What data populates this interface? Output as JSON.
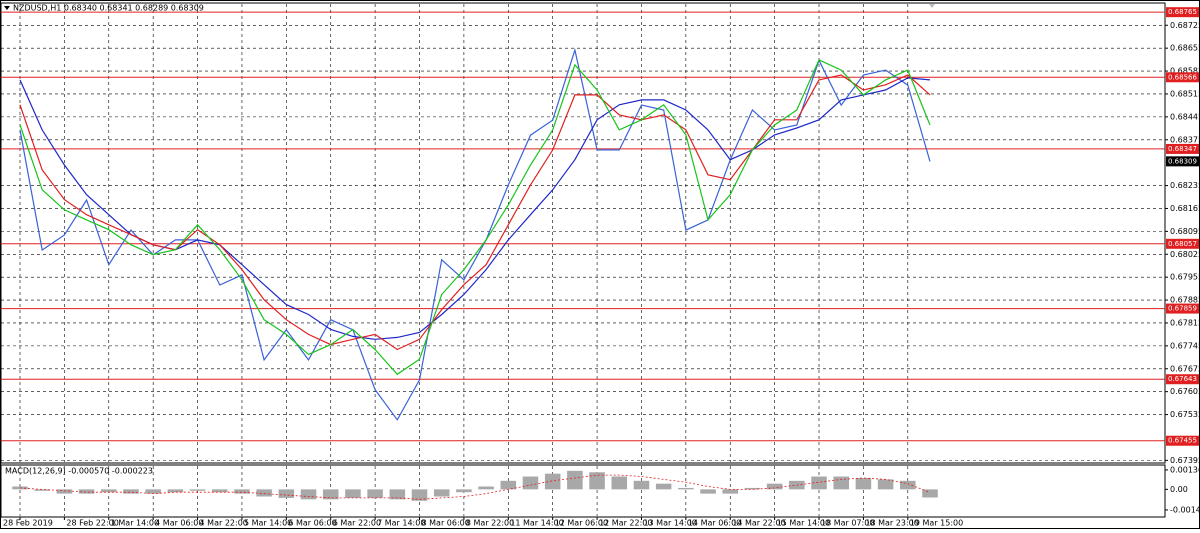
{
  "chart_data": [
    {
      "type": "line",
      "title": "NZDUSD,H1 0.68340 0.68341 0.68289 0.68309",
      "categories": [
        "28 Feb 2019",
        null,
        "28 Feb 22:00",
        null,
        "1 Mar 14:00",
        null,
        "4 Mar 06:00",
        null,
        "4 Mar 22:00",
        null,
        "5 Mar 14:00",
        null,
        "6 Mar 06:00",
        null,
        "6 Mar 22:00",
        null,
        "7 Mar 14:00",
        null,
        "8 Mar 06:00",
        null,
        "8 Mar 22:00",
        null,
        "11 Mar 14:00",
        null,
        "12 Mar 06:00",
        null,
        "12 Mar 22:00",
        null,
        "13 Mar 14:00",
        null,
        "14 Mar 06:00",
        null,
        "14 Mar 22:00",
        null,
        "15 Mar 14:00",
        null,
        "18 Mar 07:00",
        null,
        "18 Mar 23:00",
        null,
        "19 Mar 15:00",
        null
      ],
      "series": [
        {
          "color": "#3a62d8",
          "values": [
            0.68405,
            0.68038,
            0.68084,
            0.68191,
            0.67993,
            0.68099,
            0.68023,
            0.68069,
            0.68069,
            0.67931,
            0.67962,
            0.67702,
            0.67794,
            0.67702,
            0.67825,
            0.67794,
            0.67611,
            0.67519,
            0.67641,
            0.68008,
            0.67947,
            0.68069,
            0.68237,
            0.68389,
            0.68435,
            0.68649,
            0.68344,
            0.68344,
            0.68481,
            0.68466,
            0.68099,
            0.6813,
            0.68313,
            0.68466,
            0.68405,
            0.6842,
            0.68618,
            0.68481,
            0.68573,
            0.68588,
            0.68542,
            0.68309
          ]
        },
        {
          "color": "#1e28c8",
          "values": [
            0.68558,
            0.68405,
            0.68298,
            0.68207,
            0.68146,
            0.68085,
            0.68054,
            0.68039,
            0.68069,
            0.68054,
            0.67993,
            0.67932,
            0.67871,
            0.67841,
            0.67795,
            0.67774,
            0.67765,
            0.67771,
            0.67786,
            0.67841,
            0.67902,
            0.67978,
            0.68069,
            0.68146,
            0.68222,
            0.68314,
            0.68436,
            0.68482,
            0.68497,
            0.68497,
            0.68466,
            0.68405,
            0.68314,
            0.68344,
            0.6839,
            0.68411,
            0.68436,
            0.68497,
            0.68512,
            0.68527,
            0.68564,
            0.68558
          ]
        },
        {
          "color": "#e02020",
          "values": [
            0.68482,
            0.68283,
            0.68192,
            0.68146,
            0.68115,
            0.68085,
            0.68054,
            0.68039,
            0.681,
            0.68054,
            0.67978,
            0.67886,
            0.67825,
            0.6778,
            0.67749,
            0.67765,
            0.6778,
            0.67734,
            0.67765,
            0.67856,
            0.67932,
            0.67993,
            0.68115,
            0.68237,
            0.68344,
            0.68512,
            0.68512,
            0.68451,
            0.68436,
            0.68451,
            0.68405,
            0.68268,
            0.68253,
            0.68344,
            0.68436,
            0.68436,
            0.68558,
            0.68573,
            0.68527,
            0.68543,
            0.68573,
            0.68512
          ]
        },
        {
          "color": "#18c418",
          "values": [
            0.6842,
            0.68222,
            0.68161,
            0.6813,
            0.681,
            0.68054,
            0.68024,
            0.68039,
            0.68115,
            0.68039,
            0.67947,
            0.67825,
            0.6778,
            0.67719,
            0.67749,
            0.67795,
            0.67734,
            0.67658,
            0.67704,
            0.67902,
            0.67978,
            0.68069,
            0.68176,
            0.68298,
            0.68405,
            0.68604,
            0.68527,
            0.68405,
            0.68436,
            0.68482,
            0.6839,
            0.6813,
            0.68207,
            0.68344,
            0.6842,
            0.68466,
            0.68619,
            0.68588,
            0.68512,
            0.68558,
            0.68588,
            0.6842
          ]
        }
      ],
      "levels": [
        0.68765,
        0.68566,
        0.68347,
        0.68057,
        0.67859,
        0.67643,
        0.67455
      ],
      "level_color": "#e02020",
      "current_price": 0.68309,
      "ylim": [
        0.6739,
        0.6879
      ],
      "yticks": [
        0.68725,
        0.68655,
        0.68585,
        0.68515,
        0.68445,
        0.68375,
        0.68235,
        0.68165,
        0.68095,
        0.68025,
        0.67955,
        0.67885,
        0.67815,
        0.67745,
        0.67675,
        0.67605,
        0.67535,
        0.67395
      ],
      "grid": true
    },
    {
      "type": "bar",
      "title": "MACD(12,26,9) -0.000570 -0.000223",
      "series": [
        {
          "type": "bar",
          "color": "#a8a8a8",
          "values": [
            0.0002,
            -0.0001,
            -0.0003,
            -0.0003,
            -0.0002,
            -0.0003,
            -0.0003,
            -0.0002,
            -0.0001,
            -0.0002,
            -0.0003,
            -0.0005,
            -0.0006,
            -0.0007,
            -0.0007,
            -0.0006,
            -0.0006,
            -0.0007,
            -0.0008,
            -0.0005,
            -0.0002,
            0.0002,
            0.0006,
            0.0009,
            0.0011,
            0.0013,
            0.0012,
            0.0009,
            0.0006,
            0.0004,
            0.0001,
            -0.0003,
            -0.0003,
            0.0001,
            0.0004,
            0.0006,
            0.0009,
            0.0009,
            0.0008,
            0.0007,
            0.0006,
            -0.00057
          ]
        },
        {
          "type": "line",
          "color": "#e02020",
          "values": [
            0.0001,
            0,
            -0.0001,
            -0.0002,
            -0.0002,
            -0.0002,
            -0.0003,
            -0.0002,
            -0.0002,
            -0.0002,
            -0.0002,
            -0.0003,
            -0.0004,
            -0.0005,
            -0.0006,
            -0.0006,
            -0.0006,
            -0.0006,
            -0.0007,
            -0.0006,
            -0.0005,
            -0.0003,
            0,
            0.0003,
            0.0006,
            0.0008,
            0.001,
            0.001,
            0.0009,
            0.0007,
            0.0005,
            0.0002,
            0,
            0,
            0.0001,
            0.0003,
            0.0005,
            0.0007,
            0.0008,
            0.0007,
            0.0004,
            -0.000223
          ]
        }
      ],
      "ylim": [
        -0.00194,
        0.00171
      ],
      "yticks": [
        0.001363,
        {
          "value": 0,
          "label": "0.00"
        },
        -0.001445
      ]
    }
  ]
}
